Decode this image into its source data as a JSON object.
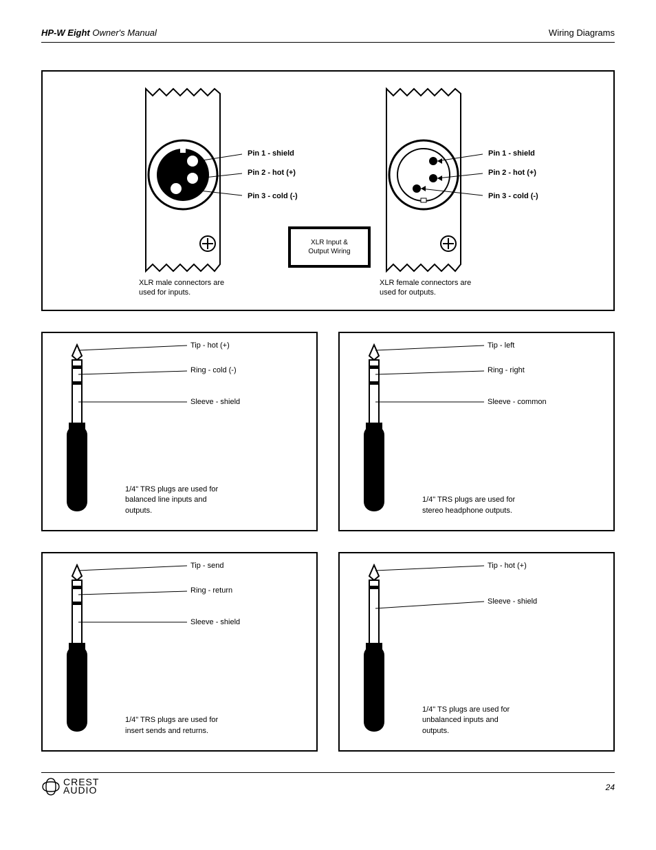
{
  "header": {
    "left_model": "HP-W Eight",
    "left_sub": "Owner's Manual",
    "right_title": "Wiring Diagrams"
  },
  "xlr": {
    "male_caption": "XLR male connectors are\nused for inputs.",
    "female_caption": "XLR female connectors are\nused for outputs.",
    "pins": {
      "pin1": "Pin 1 - shield",
      "pin2": "Pin 2 - hot (+)",
      "pin3": "Pin 3 - cold (-)"
    },
    "center_line1": "XLR Input &",
    "center_line2": "Output Wiring"
  },
  "plugs": {
    "balanced_line": {
      "tip": "Tip - hot (+)",
      "ring": "Ring - cold (-)",
      "sleeve": "Sleeve - shield",
      "caption": "1/4\" TRS plugs are used for\nbalanced line inputs and\noutputs."
    },
    "headphone": {
      "tip": "Tip - left",
      "ring": "Ring - right",
      "sleeve": "Sleeve - common",
      "caption": "1/4\" TRS plugs are used for\nstereo headphone outputs."
    },
    "insert": {
      "tip": "Tip - send",
      "ring": "Ring - return",
      "sleeve": "Sleeve - shield",
      "caption": "1/4\" TRS plugs are used for\ninsert sends and returns."
    },
    "unbalanced": {
      "tip": "Tip - hot (+)",
      "sleeve": "Sleeve - shield",
      "caption": "1/4\" TS plugs are used for\nunbalanced inputs and\noutputs."
    }
  },
  "footer": {
    "brand_top": "CREST",
    "brand_bottom": "AUDIO",
    "page": "24"
  },
  "style": {
    "page_bg": "#ffffff",
    "border_color": "#000000",
    "text_color": "#000000",
    "label_fontsize": 11,
    "header_fontsize": 13
  }
}
